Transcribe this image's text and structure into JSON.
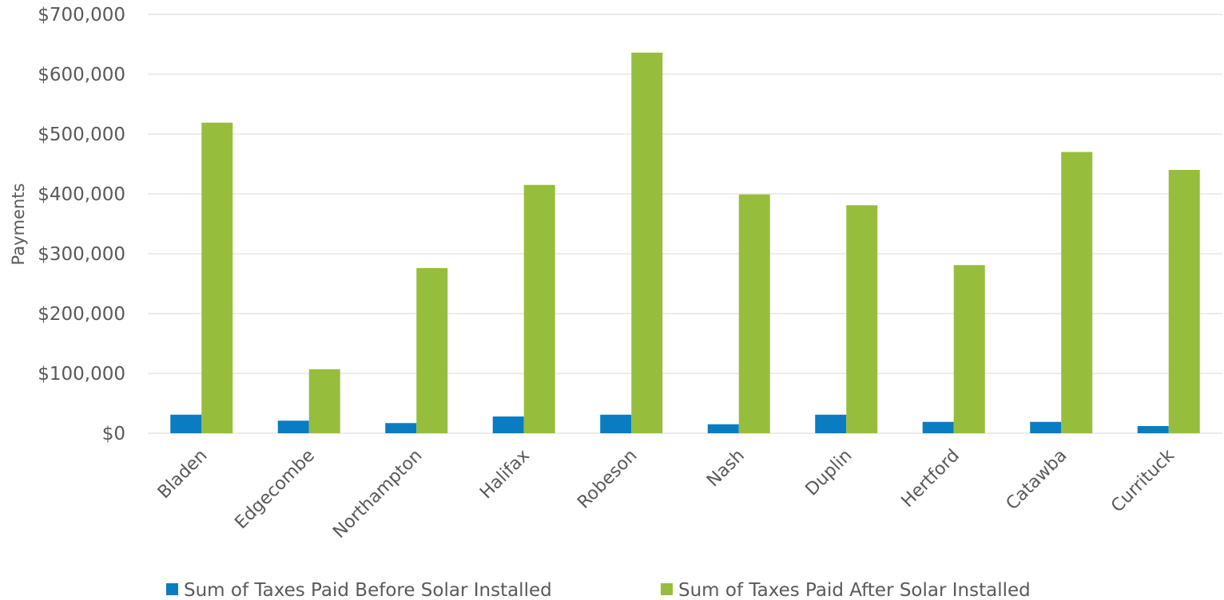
{
  "chart_data": {
    "type": "bar",
    "title": "",
    "xlabel": "",
    "ylabel": "Payments",
    "ylim": [
      0,
      700000
    ],
    "y_ticks": [
      0,
      100000,
      200000,
      300000,
      400000,
      500000,
      600000,
      700000
    ],
    "y_tick_labels": [
      "$0",
      "$100,000",
      "$200,000",
      "$300,000",
      "$400,000",
      "$500,000",
      "$600,000",
      "$700,000"
    ],
    "grid": true,
    "legend_position": "bottom",
    "categories": [
      "Bladen",
      "Edgecombe",
      "Northampton",
      "Halifax",
      "Robeson",
      "Nash",
      "Duplin",
      "Hertford",
      "Catawba",
      "Currituck"
    ],
    "series": [
      {
        "name": "Sum of Taxes Paid Before Solar Installed",
        "color": "#0a7cc2",
        "values": [
          31000,
          21000,
          17000,
          28000,
          31000,
          15000,
          31000,
          19000,
          19000,
          12000
        ]
      },
      {
        "name": "Sum of Taxes Paid After Solar Installed",
        "color": "#97bd3d",
        "values": [
          519000,
          107000,
          276000,
          415000,
          636000,
          399000,
          381000,
          281000,
          470000,
          440000
        ]
      }
    ]
  }
}
